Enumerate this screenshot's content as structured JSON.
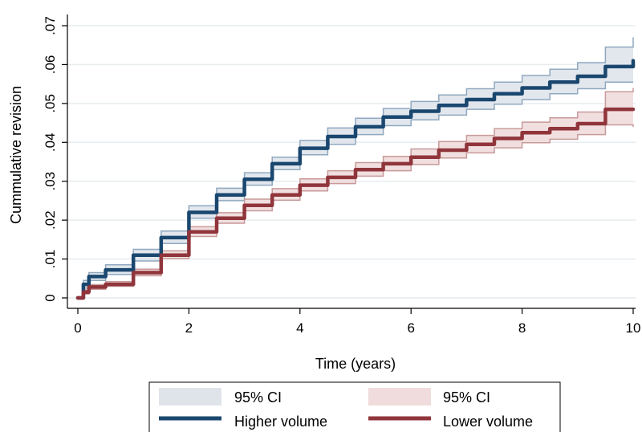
{
  "chart_data": {
    "type": "line",
    "xlabel": "Time (years)",
    "ylabel": "Cummulative revision",
    "xlim": [
      0,
      10
    ],
    "ylim": [
      0,
      0.07
    ],
    "xticks": [
      0,
      2,
      4,
      6,
      8,
      10
    ],
    "xtick_labels": [
      "0",
      "2",
      "4",
      "6",
      "8",
      "10"
    ],
    "yticks": [
      0,
      0.01,
      0.02,
      0.03,
      0.04,
      0.05,
      0.06,
      0.07
    ],
    "ytick_labels": [
      "0",
      ".01",
      ".02",
      ".03",
      ".04",
      ".05",
      ".06",
      ".07"
    ],
    "grid": true,
    "legend_position": "bottom",
    "x": [
      0,
      0.1,
      0.2,
      0.5,
      1,
      1.5,
      2,
      2.5,
      3,
      3.5,
      4,
      4.5,
      5,
      5.5,
      6,
      6.5,
      7,
      7.5,
      8,
      8.5,
      9,
      9.5,
      10
    ],
    "series": [
      {
        "name": "Higher volume",
        "color": "#1a476f",
        "ci_color": "#dfe4eb",
        "ci_edge": "#90a8c0",
        "values": [
          0,
          0.0035,
          0.0055,
          0.0072,
          0.011,
          0.0155,
          0.022,
          0.0265,
          0.0305,
          0.0345,
          0.0385,
          0.0415,
          0.044,
          0.0465,
          0.048,
          0.0495,
          0.051,
          0.0525,
          0.054,
          0.0555,
          0.057,
          0.0595,
          0.061
        ],
        "lower": [
          0,
          0.0025,
          0.0045,
          0.006,
          0.0095,
          0.014,
          0.0205,
          0.025,
          0.029,
          0.033,
          0.0368,
          0.0395,
          0.042,
          0.0443,
          0.0458,
          0.047,
          0.0485,
          0.0498,
          0.051,
          0.0525,
          0.0538,
          0.0555,
          0.0555
        ],
        "upper": [
          0,
          0.0045,
          0.0065,
          0.0085,
          0.0125,
          0.0172,
          0.0237,
          0.0282,
          0.0322,
          0.0362,
          0.0405,
          0.0437,
          0.0462,
          0.0487,
          0.0505,
          0.0522,
          0.0538,
          0.0555,
          0.0572,
          0.0588,
          0.0605,
          0.0645,
          0.067
        ]
      },
      {
        "name": "Lower volume",
        "color": "#90353b",
        "ci_color": "#f0dcdc",
        "ci_edge": "#c89a9a",
        "values": [
          0,
          0.0015,
          0.0028,
          0.0035,
          0.0065,
          0.011,
          0.017,
          0.0205,
          0.0238,
          0.0265,
          0.029,
          0.031,
          0.033,
          0.0345,
          0.0362,
          0.038,
          0.0395,
          0.041,
          0.0425,
          0.0435,
          0.0448,
          0.0485,
          0.0485
        ],
        "lower": [
          0,
          0.001,
          0.0022,
          0.003,
          0.0057,
          0.0101,
          0.0158,
          0.0192,
          0.0224,
          0.0251,
          0.0275,
          0.0294,
          0.0313,
          0.0327,
          0.0343,
          0.036,
          0.0373,
          0.0386,
          0.0399,
          0.0408,
          0.042,
          0.0445,
          0.044
        ],
        "upper": [
          0,
          0.002,
          0.0034,
          0.0042,
          0.0074,
          0.0121,
          0.0183,
          0.0219,
          0.0254,
          0.0281,
          0.0306,
          0.0327,
          0.0348,
          0.0364,
          0.0383,
          0.0402,
          0.0418,
          0.0435,
          0.0452,
          0.0463,
          0.0478,
          0.053,
          0.054
        ]
      }
    ],
    "legend": {
      "ci_label_1": "95% CI",
      "ci_label_2": "95% CI",
      "line_label_1": "Higher volume",
      "line_label_2": "Lower volume"
    }
  }
}
